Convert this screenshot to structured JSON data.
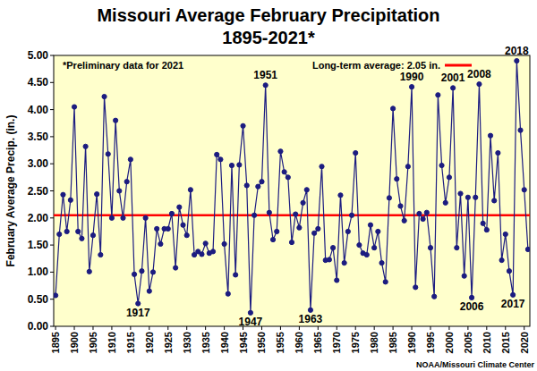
{
  "chart_data": {
    "type": "line",
    "title": "Missouri Average February Precipitation",
    "subtitle": "1895-2021*",
    "note": "*Preliminary data for 2021",
    "ylabel": "February Average  Precip. (in.)",
    "source": "NOAA/Missouri Climate Center",
    "x": [
      1895,
      1896,
      1897,
      1898,
      1899,
      1900,
      1901,
      1902,
      1903,
      1904,
      1905,
      1906,
      1907,
      1908,
      1909,
      1910,
      1911,
      1912,
      1913,
      1914,
      1915,
      1916,
      1917,
      1918,
      1919,
      1920,
      1921,
      1922,
      1923,
      1924,
      1925,
      1926,
      1927,
      1928,
      1929,
      1930,
      1931,
      1932,
      1933,
      1934,
      1935,
      1936,
      1937,
      1938,
      1939,
      1940,
      1941,
      1942,
      1943,
      1944,
      1945,
      1946,
      1947,
      1948,
      1949,
      1950,
      1951,
      1952,
      1953,
      1954,
      1955,
      1956,
      1957,
      1958,
      1959,
      1960,
      1961,
      1962,
      1963,
      1964,
      1965,
      1966,
      1967,
      1968,
      1969,
      1970,
      1971,
      1972,
      1973,
      1974,
      1975,
      1976,
      1977,
      1978,
      1979,
      1980,
      1981,
      1982,
      1983,
      1984,
      1985,
      1986,
      1987,
      1988,
      1989,
      1990,
      1991,
      1992,
      1993,
      1994,
      1995,
      1996,
      1997,
      1998,
      1999,
      2000,
      2001,
      2002,
      2003,
      2004,
      2005,
      2006,
      2007,
      2008,
      2009,
      2010,
      2011,
      2012,
      2013,
      2014,
      2015,
      2016,
      2017,
      2018,
      2019,
      2020,
      2021
    ],
    "series": [
      {
        "name": "February Average Precip.",
        "color": "#1c1c80",
        "marker": "circle",
        "line_style": "solid",
        "values": [
          0.57,
          1.7,
          2.43,
          1.75,
          2.33,
          4.05,
          1.75,
          1.62,
          3.32,
          1.01,
          1.68,
          2.44,
          1.32,
          4.24,
          3.18,
          2.0,
          3.8,
          2.5,
          2.0,
          2.67,
          3.08,
          0.96,
          0.42,
          1.02,
          2.0,
          0.65,
          1.0,
          1.8,
          1.52,
          1.8,
          1.8,
          2.08,
          1.08,
          2.2,
          1.87,
          1.68,
          2.52,
          1.32,
          1.38,
          1.33,
          1.53,
          1.35,
          1.38,
          3.17,
          3.08,
          1.52,
          0.6,
          2.97,
          0.95,
          2.98,
          3.7,
          2.6,
          0.25,
          2.05,
          2.58,
          2.67,
          4.45,
          2.1,
          1.6,
          1.75,
          3.23,
          2.85,
          2.75,
          1.55,
          2.07,
          1.82,
          2.28,
          2.52,
          0.3,
          1.72,
          1.8,
          2.95,
          1.22,
          1.23,
          1.45,
          0.85,
          2.42,
          1.17,
          1.75,
          2.05,
          3.2,
          1.5,
          1.35,
          1.32,
          1.87,
          1.45,
          1.75,
          1.17,
          0.82,
          2.37,
          4.02,
          2.72,
          2.22,
          1.95,
          2.95,
          4.42,
          0.72,
          2.08,
          1.98,
          2.1,
          1.45,
          0.55,
          4.27,
          2.97,
          2.28,
          2.75,
          4.4,
          1.45,
          2.45,
          0.93,
          2.38,
          0.53,
          2.38,
          4.47,
          1.9,
          1.78,
          3.52,
          2.32,
          3.2,
          1.22,
          1.7,
          1.02,
          0.58,
          4.9,
          3.62,
          2.52,
          1.42
        ]
      }
    ],
    "reference": {
      "name": "Long-term average: 2.05 in.",
      "value": 2.05,
      "color": "#ff0000"
    },
    "annotations": [
      {
        "x": 1917,
        "text": "1917"
      },
      {
        "x": 1947,
        "text": "1947"
      },
      {
        "x": 1951,
        "text": "1951"
      },
      {
        "x": 1963,
        "text": "1963"
      },
      {
        "x": 1990,
        "text": "1990"
      },
      {
        "x": 2001,
        "text": "2001"
      },
      {
        "x": 2006,
        "text": "2006"
      },
      {
        "x": 2008,
        "text": "2008"
      },
      {
        "x": 2017,
        "text": "2017"
      },
      {
        "x": 2018,
        "text": "2018"
      }
    ],
    "xlim": [
      1894.5,
      2021.5
    ],
    "xticks": [
      1895,
      1900,
      1905,
      1910,
      1915,
      1920,
      1925,
      1930,
      1935,
      1940,
      1945,
      1950,
      1955,
      1960,
      1965,
      1970,
      1975,
      1980,
      1985,
      1990,
      1995,
      2000,
      2005,
      2010,
      2015,
      2020
    ],
    "ylim": [
      0,
      5
    ],
    "yticks": [
      {
        "value": 0,
        "label": "0.00"
      },
      {
        "value": 0.5,
        "label": "0.50"
      },
      {
        "value": 1,
        "label": "1.00"
      },
      {
        "value": 1.5,
        "label": "1.50"
      },
      {
        "value": 2,
        "label": "2.00"
      },
      {
        "value": 2.5,
        "label": "2.50"
      },
      {
        "value": 3,
        "label": "3.00"
      },
      {
        "value": 3.5,
        "label": "3.50"
      },
      {
        "value": 4,
        "label": "4.00"
      },
      {
        "value": 4.5,
        "label": "4.50"
      },
      {
        "value": 5,
        "label": "5.00"
      }
    ],
    "grid": false
  }
}
